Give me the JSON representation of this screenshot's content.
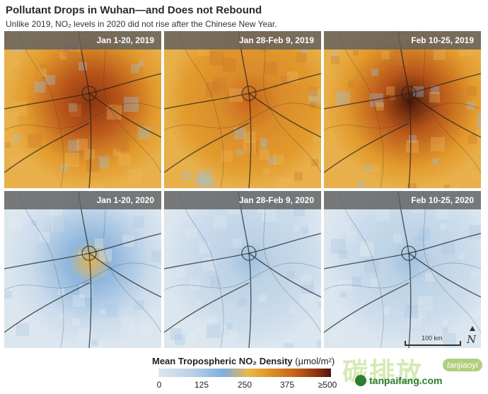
{
  "title": "Pollutant Drops in Wuhan—and Does not Rebound",
  "subtitle": "Unlike 2019, NO₂ levels in 2020 did not rise after the Chinese New Year.",
  "panels": [
    {
      "label": "Jan 1-20, 2019",
      "year": 2019,
      "intensity": 0.8
    },
    {
      "label": "Jan 28-Feb 9, 2019",
      "year": 2019,
      "intensity": 0.45
    },
    {
      "label": "Feb 10-25, 2019",
      "year": 2019,
      "intensity": 1.0
    },
    {
      "label": "Jan 1-20, 2020",
      "year": 2020,
      "intensity": 0.55
    },
    {
      "label": "Jan 28-Feb 9, 2020",
      "year": 2020,
      "intensity": 0.2
    },
    {
      "label": "Feb 10-25, 2020",
      "year": 2020,
      "intensity": 0.15
    }
  ],
  "scale_bar": {
    "label": "100 km"
  },
  "north_arrow": {
    "label": "N"
  },
  "legend": {
    "title": "Mean Tropospheric NO₂ Density",
    "units": "(µmol/m²)",
    "ticks": [
      "0",
      "125",
      "250",
      "375",
      "≥500"
    ],
    "tick_values": [
      0,
      125,
      250,
      375,
      500
    ],
    "colors": [
      "#dde7ef",
      "#b8d0e6",
      "#7faedd",
      "#e8b84f",
      "#e29a2c",
      "#c8651b",
      "#8c3410",
      "#4a1808"
    ]
  },
  "watermark": {
    "glyphs": "碳排放",
    "sub": "tanjiaoyi",
    "url": "tanpaifang.com"
  }
}
